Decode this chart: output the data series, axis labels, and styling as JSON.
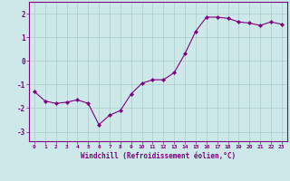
{
  "x": [
    0,
    1,
    2,
    3,
    4,
    5,
    6,
    7,
    8,
    9,
    10,
    11,
    12,
    13,
    14,
    15,
    16,
    17,
    18,
    19,
    20,
    21,
    22,
    23
  ],
  "y": [
    -1.3,
    -1.7,
    -1.8,
    -1.75,
    -1.65,
    -1.8,
    -2.7,
    -2.3,
    -2.1,
    -1.4,
    -0.95,
    -0.8,
    -0.8,
    -0.5,
    0.3,
    1.25,
    1.85,
    1.85,
    1.8,
    1.65,
    1.6,
    1.5,
    1.65,
    1.55
  ],
  "line_color": "#800080",
  "marker": "D",
  "marker_size": 2.2,
  "background_color": "#cce8e8",
  "grid_color": "#aacccc",
  "xlabel": "Windchill (Refroidissement éolien,°C)",
  "xlabel_color": "#800080",
  "xtick_labels": [
    "0",
    "1",
    "2",
    "3",
    "4",
    "5",
    "6",
    "7",
    "8",
    "9",
    "10",
    "11",
    "12",
    "13",
    "14",
    "15",
    "16",
    "17",
    "18",
    "19",
    "20",
    "21",
    "22",
    "23"
  ],
  "ytick_values": [
    -3,
    -2,
    -1,
    0,
    1,
    2
  ],
  "ylim": [
    -3.4,
    2.5
  ],
  "xlim": [
    -0.5,
    23.5
  ],
  "tick_color": "#800080",
  "spine_color": "#800080"
}
